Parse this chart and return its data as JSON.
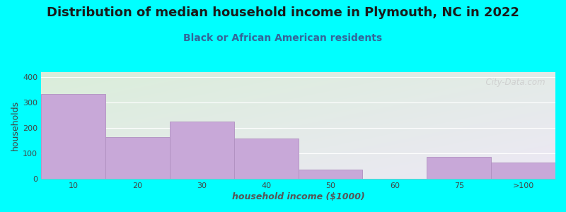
{
  "title": "Distribution of median household income in Plymouth, NC in 2022",
  "subtitle": "Black or African American residents",
  "xlabel": "household income ($1000)",
  "ylabel": "households",
  "categories": [
    "10",
    "20",
    "30",
    "40",
    "50",
    "60",
    "75",
    ">100"
  ],
  "values": [
    335,
    163,
    224,
    158,
    37,
    0,
    85,
    63
  ],
  "bar_color": "#c8a8d8",
  "bar_edge_color": "#b090c0",
  "background_color": "#00ffff",
  "plot_bg_color_topleft": "#daeeda",
  "plot_bg_color_bottomright": "#ede8f5",
  "ylim": [
    0,
    420
  ],
  "yticks": [
    0,
    100,
    200,
    300,
    400
  ],
  "title_fontsize": 13,
  "subtitle_fontsize": 10,
  "axis_label_fontsize": 9,
  "tick_fontsize": 8,
  "watermark_text": "  City-Data.com"
}
